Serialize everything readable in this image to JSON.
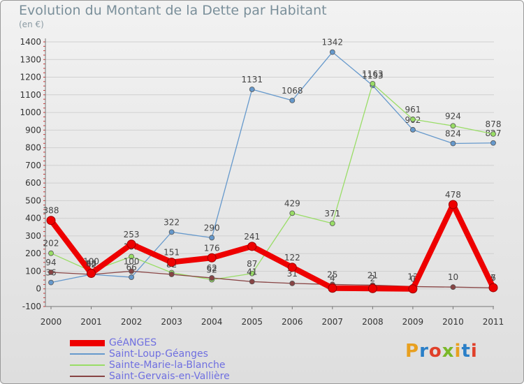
{
  "title": "Evolution du Montant de la Dette par Habitant",
  "unit": "(en €)",
  "logo": "Proxiti",
  "chart_data": {
    "type": "line",
    "title": "Evolution du Montant de la Dette par Habitant",
    "ylabel": "(en €)",
    "ylim": [
      -100,
      1400
    ],
    "yticks": [
      -100,
      0,
      100,
      200,
      300,
      400,
      500,
      600,
      700,
      800,
      900,
      1000,
      1100,
      1200,
      1300,
      1400
    ],
    "x": [
      "2000",
      "2001",
      "2002",
      "2003",
      "2004",
      "2005",
      "2006",
      "2007",
      "2008",
      "2009",
      "2010",
      "2011"
    ],
    "legend_position": "bottom-left",
    "series": [
      {
        "name": "GéANGES",
        "color": "#ee0000",
        "values": [
          388,
          88,
          253,
          151,
          176,
          241,
          122,
          4,
          2,
          0,
          478,
          7
        ]
      },
      {
        "name": "Saint-Loup-Géanges",
        "color": "#6699cc",
        "values": [
          36,
          82,
          66,
          322,
          290,
          1131,
          1068,
          1342,
          1153,
          902,
          824,
          827
        ]
      },
      {
        "name": "Sainte-Marie-la-Blanche",
        "color": "#99dd66",
        "values": [
          202,
          100,
          183,
          92,
          52,
          87,
          429,
          371,
          1163,
          961,
          924,
          878
        ]
      },
      {
        "name": "Saint-Gervais-en-Vallière",
        "color": "#884444",
        "values": [
          94,
          82,
          100,
          82,
          62,
          41,
          31,
          25,
          21,
          13,
          10,
          6
        ]
      }
    ]
  }
}
